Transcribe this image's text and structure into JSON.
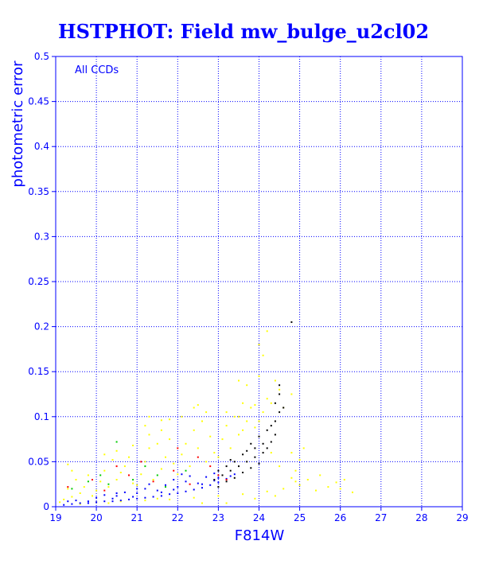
{
  "chart_data": {
    "type": "scatter",
    "title": "HSTPHOT: Field mw_bulge_u2cl02",
    "xlabel": "F814W",
    "ylabel": "photometric error",
    "annotation": "All CCDs",
    "xlim": [
      19,
      29
    ],
    "ylim": [
      0,
      0.5
    ],
    "xticks": [
      19,
      20,
      21,
      22,
      23,
      24,
      25,
      26,
      27,
      28,
      29
    ],
    "yticks": [
      0,
      0.05,
      0.1,
      0.15,
      0.2,
      0.25,
      0.3,
      0.35,
      0.4,
      0.45,
      0.5
    ],
    "ytick_labels": [
      "0",
      "0.05",
      "0.1",
      "0.15",
      "0.2",
      "0.25",
      "0.3",
      "0.35",
      "0.4",
      "0.45",
      "0.5"
    ],
    "grid": true,
    "grid_style": "dotted",
    "colors": {
      "frame": "#0000ff",
      "text": "#0000ff",
      "yellow": "#ffff00",
      "blue": "#0000ff",
      "black": "#000000",
      "red": "#ff0000",
      "green": "#00cc00"
    },
    "series": [
      {
        "color": "yellow",
        "points": [
          [
            19.2,
            0.008
          ],
          [
            19.3,
            0.02
          ],
          [
            19.4,
            0.011
          ],
          [
            19.5,
            0.03
          ],
          [
            19.6,
            0.015
          ],
          [
            19.7,
            0.022
          ],
          [
            19.8,
            0.035
          ],
          [
            19.9,
            0.012
          ],
          [
            19.4,
            0.04
          ],
          [
            19.3,
            0.047
          ],
          [
            20.0,
            0.018
          ],
          [
            20.1,
            0.028
          ],
          [
            20.2,
            0.04
          ],
          [
            20.3,
            0.022
          ],
          [
            20.4,
            0.052
          ],
          [
            20.5,
            0.03
          ],
          [
            20.6,
            0.038
          ],
          [
            20.7,
            0.045
          ],
          [
            20.8,
            0.055
          ],
          [
            20.9,
            0.026
          ],
          [
            20.2,
            0.058
          ],
          [
            20.5,
            0.062
          ],
          [
            20.9,
            0.068
          ],
          [
            21.0,
            0.024
          ],
          [
            21.1,
            0.036
          ],
          [
            21.2,
            0.05
          ],
          [
            21.3,
            0.065
          ],
          [
            21.4,
            0.03
          ],
          [
            21.5,
            0.07
          ],
          [
            21.6,
            0.042
          ],
          [
            21.7,
            0.055
          ],
          [
            21.8,
            0.075
          ],
          [
            21.9,
            0.048
          ],
          [
            21.3,
            0.08
          ],
          [
            21.6,
            0.085
          ],
          [
            21.3,
            0.1
          ],
          [
            21.6,
            0.096
          ],
          [
            21.2,
            0.09
          ],
          [
            22.0,
            0.036
          ],
          [
            22.1,
            0.058
          ],
          [
            22.2,
            0.07
          ],
          [
            22.3,
            0.045
          ],
          [
            22.4,
            0.085
          ],
          [
            22.5,
            0.065
          ],
          [
            22.6,
            0.095
          ],
          [
            22.7,
            0.05
          ],
          [
            22.8,
            0.078
          ],
          [
            22.9,
            0.06
          ],
          [
            22.1,
            0.1
          ],
          [
            22.4,
            0.11
          ],
          [
            22.7,
            0.105
          ],
          [
            22.5,
            0.113
          ],
          [
            23.0,
            0.055
          ],
          [
            23.1,
            0.075
          ],
          [
            23.2,
            0.09
          ],
          [
            23.3,
            0.065
          ],
          [
            23.4,
            0.1
          ],
          [
            23.5,
            0.08
          ],
          [
            23.6,
            0.085
          ],
          [
            23.7,
            0.095
          ],
          [
            23.8,
            0.11
          ],
          [
            23.9,
            0.088
          ],
          [
            23.2,
            0.105
          ],
          [
            23.5,
            0.1
          ],
          [
            23.6,
            0.115
          ],
          [
            23.9,
            0.113
          ],
          [
            24.0,
            0.095
          ],
          [
            24.1,
            0.105
          ],
          [
            24.2,
            0.12
          ],
          [
            24.3,
            0.115
          ],
          [
            24.5,
            0.13
          ],
          [
            24.6,
            0.11
          ],
          [
            24.8,
            0.125
          ],
          [
            23.7,
            0.135
          ],
          [
            24.0,
            0.145
          ],
          [
            24.4,
            0.14
          ],
          [
            24.1,
            0.168
          ],
          [
            24.2,
            0.195
          ],
          [
            24.0,
            0.18
          ],
          [
            23.5,
            0.14
          ],
          [
            20.0,
            0.005
          ],
          [
            20.6,
            0.006
          ],
          [
            21.2,
            0.007
          ],
          [
            21.8,
            0.008
          ],
          [
            22.4,
            0.01
          ],
          [
            23.0,
            0.012
          ],
          [
            23.6,
            0.014
          ],
          [
            24.2,
            0.017
          ],
          [
            24.6,
            0.02
          ],
          [
            25.0,
            0.024
          ],
          [
            25.4,
            0.018
          ],
          [
            25.7,
            0.022
          ],
          [
            26.0,
            0.02
          ],
          [
            25.2,
            0.03
          ],
          [
            26.3,
            0.016
          ],
          [
            25.9,
            0.027
          ],
          [
            24.8,
            0.032
          ],
          [
            24.9,
            0.04
          ],
          [
            25.0,
            0.052
          ],
          [
            24.5,
            0.045
          ],
          [
            24.3,
            0.06
          ],
          [
            24.8,
            0.06
          ],
          [
            25.5,
            0.035
          ],
          [
            26.1,
            0.03
          ],
          [
            25.1,
            0.065
          ],
          [
            22.6,
            0.004
          ],
          [
            23.2,
            0.004
          ],
          [
            23.9,
            0.009
          ],
          [
            24.4,
            0.012
          ],
          [
            24.9,
            0.028
          ],
          [
            19.6,
            0.003
          ],
          [
            20.3,
            0.004
          ],
          [
            19.1,
            0.005
          ],
          [
            21.5,
            0.009
          ],
          [
            21.8,
            0.097
          ]
        ]
      },
      {
        "color": "blue",
        "points": [
          [
            19.2,
            0.002
          ],
          [
            19.4,
            0.003
          ],
          [
            19.6,
            0.004
          ],
          [
            19.8,
            0.004
          ],
          [
            20.0,
            0.005
          ],
          [
            20.2,
            0.006
          ],
          [
            20.4,
            0.006
          ],
          [
            20.6,
            0.007
          ],
          [
            20.8,
            0.008
          ],
          [
            21.0,
            0.009
          ],
          [
            21.2,
            0.01
          ],
          [
            21.4,
            0.011
          ],
          [
            21.6,
            0.012
          ],
          [
            21.8,
            0.014
          ],
          [
            22.0,
            0.015
          ],
          [
            22.2,
            0.017
          ],
          [
            22.4,
            0.019
          ],
          [
            22.6,
            0.021
          ],
          [
            22.8,
            0.024
          ],
          [
            23.0,
            0.027
          ],
          [
            23.2,
            0.031
          ],
          [
            19.5,
            0.007
          ],
          [
            20.0,
            0.01
          ],
          [
            20.5,
            0.012
          ],
          [
            21.0,
            0.015
          ],
          [
            21.5,
            0.018
          ],
          [
            22.0,
            0.022
          ],
          [
            22.5,
            0.026
          ],
          [
            23.0,
            0.032
          ],
          [
            20.2,
            0.013
          ],
          [
            20.7,
            0.016
          ],
          [
            21.2,
            0.02
          ],
          [
            21.7,
            0.024
          ],
          [
            22.2,
            0.028
          ],
          [
            22.7,
            0.033
          ],
          [
            21.3,
            0.025
          ],
          [
            21.9,
            0.03
          ],
          [
            22.3,
            0.034
          ],
          [
            19.8,
            0.006
          ],
          [
            20.9,
            0.011
          ],
          [
            21.9,
            0.019
          ],
          [
            22.9,
            0.029
          ],
          [
            19.3,
            0.006
          ],
          [
            20.4,
            0.009
          ],
          [
            21.6,
            0.016
          ],
          [
            22.6,
            0.025
          ],
          [
            23.3,
            0.034
          ],
          [
            21.0,
            0.02
          ],
          [
            22.1,
            0.036
          ],
          [
            20.5,
            0.015
          ],
          [
            23.4,
            0.036
          ],
          [
            22.9,
            0.037
          ]
        ]
      },
      {
        "color": "black",
        "points": [
          [
            22.9,
            0.03
          ],
          [
            23.0,
            0.022
          ],
          [
            23.1,
            0.035
          ],
          [
            23.2,
            0.028
          ],
          [
            23.3,
            0.04
          ],
          [
            23.4,
            0.032
          ],
          [
            23.5,
            0.045
          ],
          [
            23.6,
            0.038
          ],
          [
            23.7,
            0.05
          ],
          [
            23.8,
            0.043
          ],
          [
            23.9,
            0.055
          ],
          [
            24.0,
            0.048
          ],
          [
            24.1,
            0.06
          ],
          [
            24.2,
            0.065
          ],
          [
            24.3,
            0.072
          ],
          [
            24.4,
            0.08
          ],
          [
            24.1,
            0.07
          ],
          [
            23.9,
            0.065
          ],
          [
            23.6,
            0.058
          ],
          [
            23.4,
            0.05
          ],
          [
            23.2,
            0.045
          ],
          [
            24.2,
            0.085
          ],
          [
            24.4,
            0.095
          ],
          [
            24.5,
            0.105
          ],
          [
            24.4,
            0.115
          ],
          [
            24.5,
            0.125
          ],
          [
            24.5,
            0.135
          ],
          [
            24.3,
            0.09
          ],
          [
            24.6,
            0.11
          ],
          [
            24.8,
            0.205
          ],
          [
            23.0,
            0.04
          ],
          [
            23.7,
            0.062
          ],
          [
            24.0,
            0.078
          ],
          [
            23.3,
            0.052
          ],
          [
            23.8,
            0.07
          ]
        ]
      },
      {
        "color": "red",
        "points": [
          [
            19.3,
            0.022
          ],
          [
            19.9,
            0.03
          ],
          [
            20.2,
            0.018
          ],
          [
            20.8,
            0.035
          ],
          [
            21.4,
            0.028
          ],
          [
            21.9,
            0.04
          ],
          [
            22.3,
            0.025
          ],
          [
            22.8,
            0.045
          ],
          [
            23.0,
            0.035
          ],
          [
            22.5,
            0.055
          ],
          [
            20.5,
            0.045
          ],
          [
            21.1,
            0.05
          ],
          [
            23.2,
            0.03
          ],
          [
            22.0,
            0.065
          ]
        ]
      },
      {
        "color": "green",
        "points": [
          [
            19.4,
            0.02
          ],
          [
            19.8,
            0.028
          ],
          [
            20.3,
            0.025
          ],
          [
            20.5,
            0.072
          ],
          [
            20.9,
            0.03
          ],
          [
            21.5,
            0.035
          ],
          [
            21.7,
            0.022
          ],
          [
            22.2,
            0.04
          ],
          [
            20.1,
            0.035
          ],
          [
            21.2,
            0.045
          ]
        ]
      }
    ]
  }
}
